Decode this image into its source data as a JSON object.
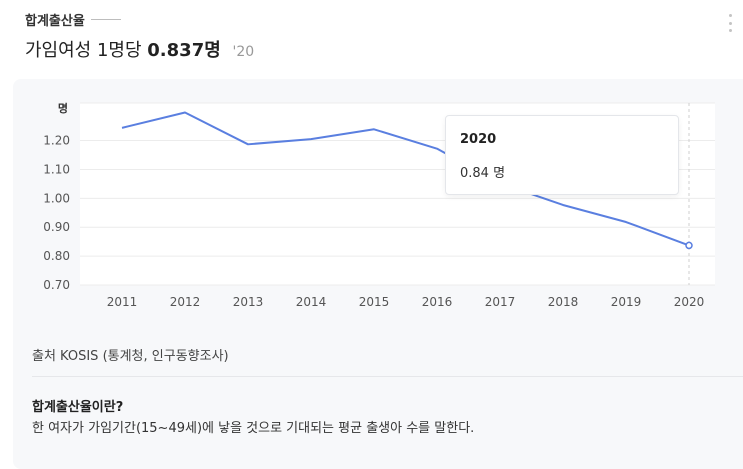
{
  "header": {
    "label": "합계출산율",
    "headline_prefix": "가임여성 1명당",
    "headline_value": "0.837명",
    "headline_year": "'20"
  },
  "chart_data": {
    "type": "line",
    "ylabel": "명",
    "categories": [
      "2011",
      "2012",
      "2013",
      "2014",
      "2015",
      "2016",
      "2017",
      "2018",
      "2019",
      "2020"
    ],
    "values": [
      1.244,
      1.297,
      1.187,
      1.205,
      1.239,
      1.172,
      1.052,
      0.977,
      0.918,
      0.837
    ],
    "yticks": [
      "1.20",
      "1.10",
      "1.00",
      "0.90",
      "0.80",
      "0.70"
    ],
    "ylim": [
      0.7,
      1.33
    ],
    "grid": true,
    "line_color": "#5a7fe0"
  },
  "tooltip": {
    "year": "2020",
    "value_text": "0.84 명"
  },
  "footer": {
    "source": "출처 KOSIS (통계청, 인구동향조사)",
    "definition_title": "합계출산율이란?",
    "definition_text": "한 여자가 가임기간(15~49세)에 낳을 것으로 기대되는 평균 출생아 수를 말한다."
  }
}
